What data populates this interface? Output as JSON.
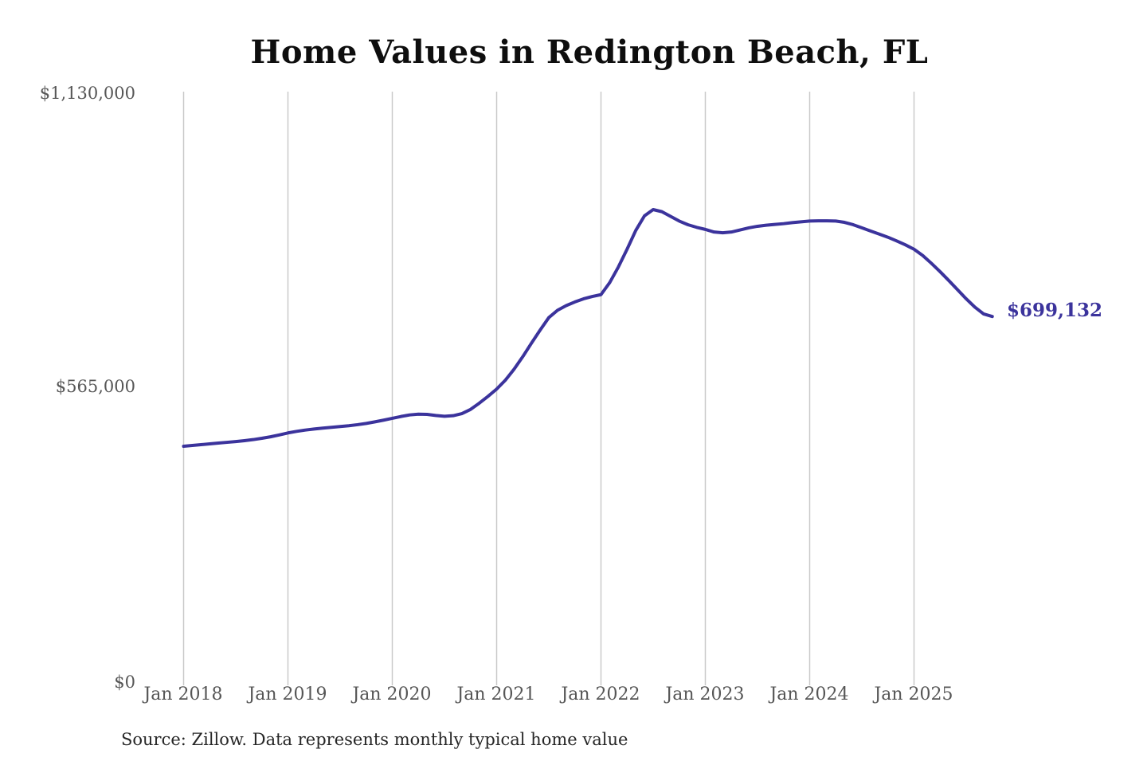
{
  "chart_data": {
    "type": "line",
    "title": "Home Values in Redington Beach, FL",
    "series_name": "Monthly typical home value",
    "unit": "USD",
    "line_color": "#3b339c",
    "grid_color": "#c9c9c9",
    "grid": "vertical-only",
    "legend": "none",
    "ylim": [
      0,
      1130000
    ],
    "y_tick_labels": [
      "$1,130,000",
      "$565,000",
      "$0"
    ],
    "y_tick_values": [
      1130000,
      565000,
      0
    ],
    "x_tick_labels": [
      "Jan 2018",
      "Jan 2019",
      "Jan 2020",
      "Jan 2021",
      "Jan 2022",
      "Jan 2023",
      "Jan 2024",
      "Jan 2025"
    ],
    "end_label": "$699,132",
    "end_value": 699132,
    "x": [
      "2018-01",
      "2018-02",
      "2018-03",
      "2018-04",
      "2018-05",
      "2018-06",
      "2018-07",
      "2018-08",
      "2018-09",
      "2018-10",
      "2018-11",
      "2018-12",
      "2019-01",
      "2019-02",
      "2019-03",
      "2019-04",
      "2019-05",
      "2019-06",
      "2019-07",
      "2019-08",
      "2019-09",
      "2019-10",
      "2019-11",
      "2019-12",
      "2020-01",
      "2020-02",
      "2020-03",
      "2020-04",
      "2020-05",
      "2020-06",
      "2020-07",
      "2020-08",
      "2020-09",
      "2020-10",
      "2020-11",
      "2020-12",
      "2021-01",
      "2021-02",
      "2021-03",
      "2021-04",
      "2021-05",
      "2021-06",
      "2021-07",
      "2021-08",
      "2021-09",
      "2021-10",
      "2021-11",
      "2021-12",
      "2022-01",
      "2022-02",
      "2022-03",
      "2022-04",
      "2022-05",
      "2022-06",
      "2022-07",
      "2022-08",
      "2022-09",
      "2022-10",
      "2022-11",
      "2022-12",
      "2023-01",
      "2023-02",
      "2023-03",
      "2023-04",
      "2023-05",
      "2023-06",
      "2023-07",
      "2023-08",
      "2023-09",
      "2023-10",
      "2023-11",
      "2023-12",
      "2024-01",
      "2024-02",
      "2024-03",
      "2024-04",
      "2024-05",
      "2024-06",
      "2024-07",
      "2024-08",
      "2024-09",
      "2024-10",
      "2024-11",
      "2024-12",
      "2025-01",
      "2025-02",
      "2025-03",
      "2025-04",
      "2025-05",
      "2025-06",
      "2025-07",
      "2025-08",
      "2025-09",
      "2025-10"
    ],
    "values": [
      450400,
      452000,
      453500,
      455000,
      456500,
      458000,
      459500,
      461200,
      463200,
      465700,
      468600,
      472200,
      476000,
      479000,
      481500,
      483500,
      485200,
      486700,
      488200,
      489800,
      491800,
      494200,
      497200,
      500500,
      504000,
      507500,
      510500,
      512000,
      511500,
      509500,
      508000,
      509000,
      513000,
      521000,
      533000,
      546000,
      560000,
      577000,
      598000,
      622000,
      648000,
      673000,
      697000,
      711000,
      720000,
      727000,
      733000,
      737500,
      741000,
      764000,
      794000,
      828000,
      864000,
      892000,
      904000,
      900000,
      891000,
      882000,
      875000,
      870000,
      866000,
      861000,
      859500,
      861000,
      865000,
      869000,
      872000,
      874000,
      875500,
      877000,
      879000,
      880500,
      882000,
      882500,
      882500,
      882000,
      879500,
      875000,
      869000,
      863000,
      857000,
      851000,
      844000,
      836500,
      828000,
      816000,
      801000,
      785000,
      768000,
      750500,
      733000,
      717000,
      704000,
      699132
    ]
  },
  "footer": {
    "source": "Source: Zillow. Data represents monthly typical home value"
  }
}
